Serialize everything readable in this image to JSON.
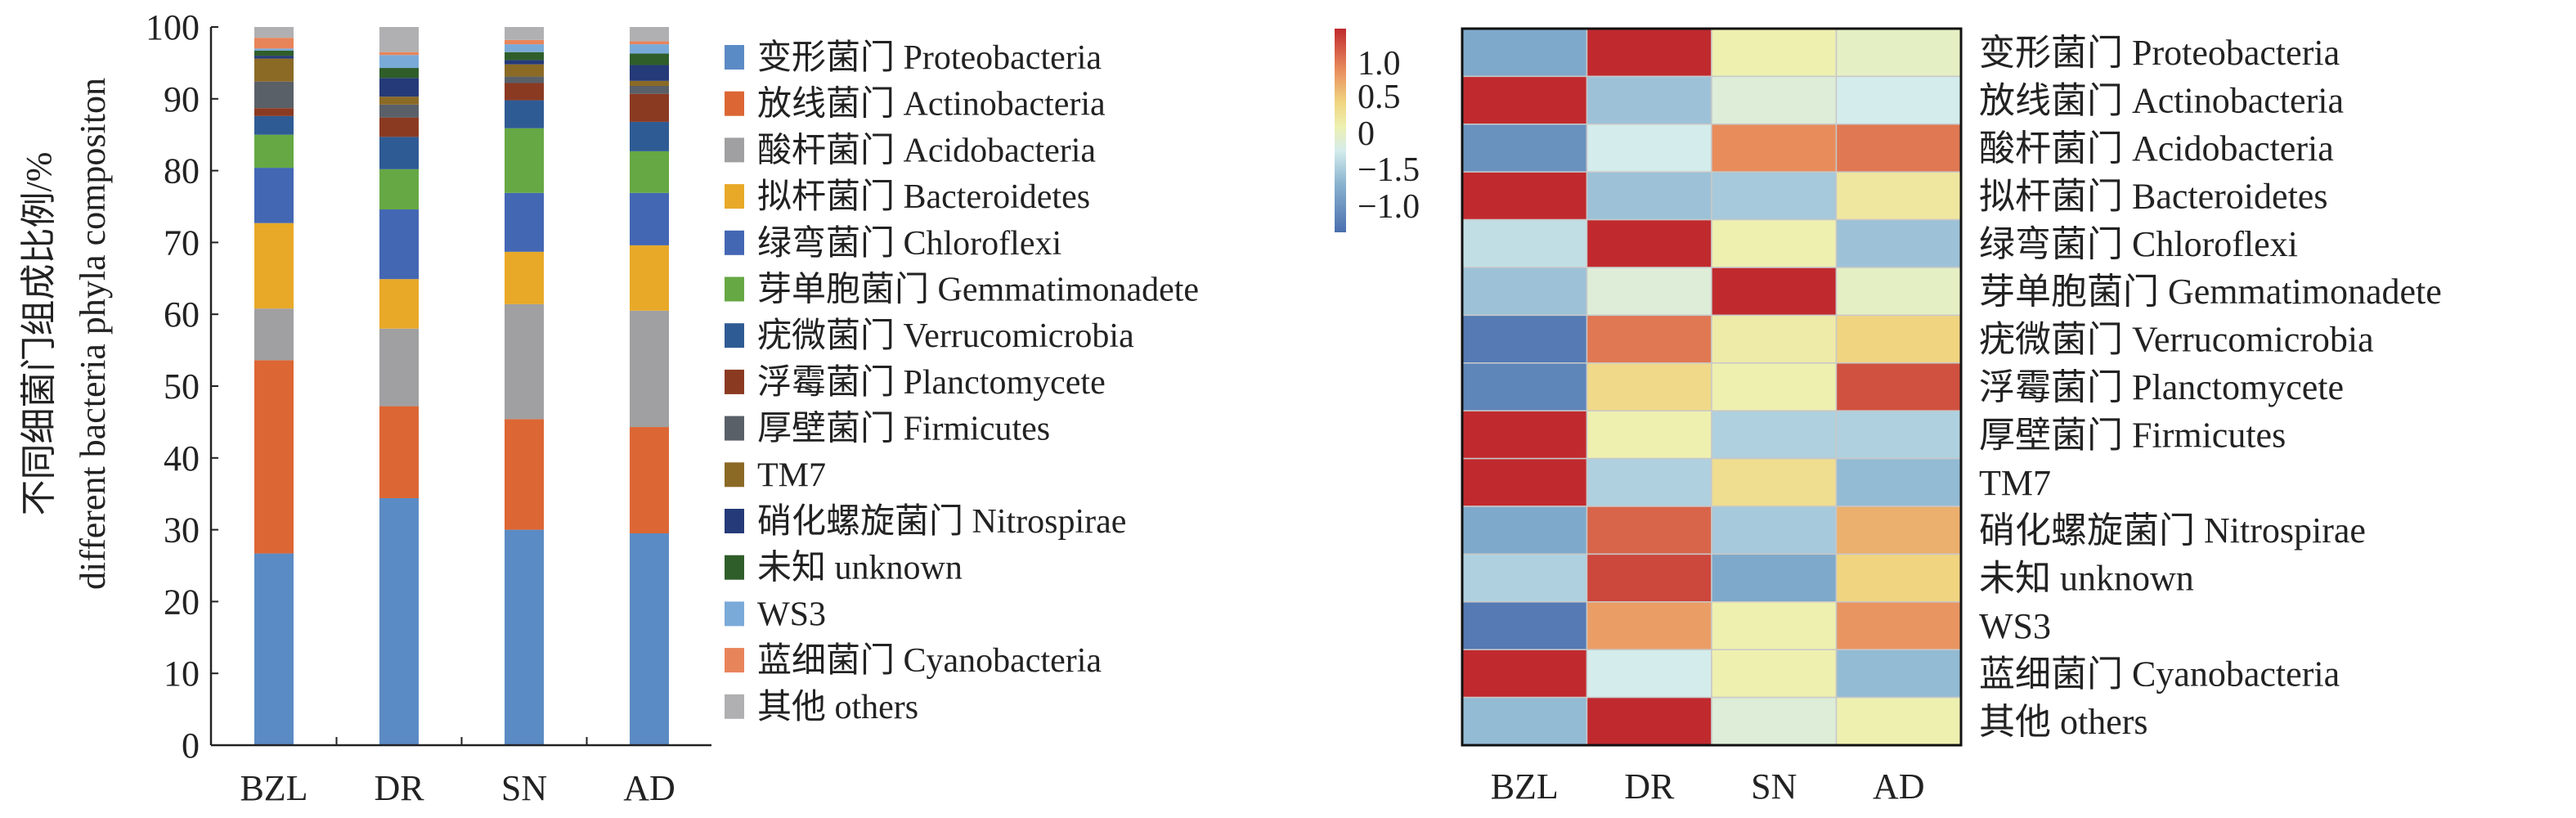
{
  "chart_data": [
    {
      "type": "bar",
      "stacked": true,
      "ylabel": [
        "不同细菌门组成比例/%",
        "different bacteria phyla compositon"
      ],
      "xlabel": "",
      "ylim": [
        0,
        100
      ],
      "yticks": [
        "0",
        "10",
        "20",
        "30",
        "40",
        "50",
        "60",
        "70",
        "80",
        "90",
        "100"
      ],
      "categories": [
        "BZL",
        "DR",
        "SN",
        "AD"
      ],
      "legend_position": "right",
      "series": [
        {
          "name": "变形菌门 Proteobacteria",
          "color": "#5b8bc4",
          "values": [
            26.7,
            34.4,
            30.0,
            29.5
          ]
        },
        {
          "name": "放线菌门 Actinobacteria",
          "color": "#dc6634",
          "values": [
            26.9,
            12.8,
            15.4,
            14.8
          ]
        },
        {
          "name": "酸杆菌门 Acidobacteria",
          "color": "#a0a0a2",
          "values": [
            7.2,
            10.8,
            16.0,
            16.2
          ]
        },
        {
          "name": "拟杆菌门 Bacteroidetes",
          "color": "#e8a928",
          "values": [
            11.9,
            6.9,
            7.3,
            9.1
          ]
        },
        {
          "name": "绿弯菌门 Chloroflexi",
          "color": "#4467b4",
          "values": [
            7.7,
            9.7,
            8.2,
            7.3
          ]
        },
        {
          "name": "芽单胞菌门 Gemmatimonadete",
          "color": "#66a844",
          "values": [
            4.6,
            5.6,
            9.0,
            5.8
          ]
        },
        {
          "name": "疣微菌门 Verrucomicrobia",
          "color": "#2f5b94",
          "values": [
            2.6,
            4.5,
            3.9,
            4.1
          ]
        },
        {
          "name": "浮霉菌门 Planctomycete",
          "color": "#8b3a22",
          "values": [
            1.1,
            2.7,
            2.4,
            3.9
          ]
        },
        {
          "name": "厚壁菌门 Firmicutes",
          "color": "#5a6068",
          "values": [
            3.7,
            1.8,
            0.9,
            1.1
          ]
        },
        {
          "name": "TM7",
          "color": "#8b6a26",
          "values": [
            3.2,
            1.1,
            1.7,
            0.7
          ]
        },
        {
          "name": "硝化螺旋菌门 Nitrospirae",
          "color": "#253a78",
          "values": [
            0.4,
            2.6,
            0.6,
            2.2
          ]
        },
        {
          "name": "未知 unknown",
          "color": "#2f5e2a",
          "values": [
            0.7,
            1.4,
            1.1,
            1.6
          ]
        },
        {
          "name": "WS3",
          "color": "#7aaad8",
          "values": [
            0.3,
            1.8,
            1.1,
            1.3
          ]
        },
        {
          "name": "蓝细菌门 Cyanobacteria",
          "color": "#e8845a",
          "values": [
            1.5,
            0.4,
            0.6,
            0.4
          ]
        },
        {
          "name": "其他 others",
          "color": "#b0b0b2",
          "values": [
            1.5,
            3.5,
            1.8,
            2.0
          ]
        }
      ]
    },
    {
      "type": "heatmap",
      "columns": [
        "BZL",
        "DR",
        "SN",
        "AD"
      ],
      "rows": [
        "变形菌门 Proteobacteria",
        "放线菌门 Actinobacteria",
        "酸杆菌门 Acidobacteria",
        "拟杆菌门 Bacteroidetes",
        "绿弯菌门 Chloroflexi",
        "芽单胞菌门 Gemmatimonadete",
        "疣微菌门 Verrucomicrobia",
        "浮霉菌门 Planctomycete",
        "厚壁菌门 Firmicutes",
        "TM7",
        "硝化螺旋菌门 Nitrospirae",
        "未知 unknown",
        "WS3",
        "蓝细菌门 Cyanobacteria",
        "其他 others"
      ],
      "values": [
        [
          -0.7,
          1.3,
          0.1,
          0.0
        ],
        [
          1.4,
          -0.5,
          -0.1,
          -0.2
        ],
        [
          -0.9,
          -0.2,
          0.8,
          0.9
        ],
        [
          1.3,
          -0.5,
          -0.45,
          0.2
        ],
        [
          -0.3,
          1.4,
          0.1,
          -0.5
        ],
        [
          -0.5,
          -0.1,
          1.4,
          0.0
        ],
        [
          -1.1,
          0.9,
          0.15,
          0.4
        ],
        [
          -1.0,
          0.35,
          0.1,
          1.1
        ],
        [
          1.4,
          0.1,
          -0.4,
          -0.4
        ],
        [
          1.3,
          -0.4,
          0.3,
          -0.55
        ],
        [
          -0.7,
          1.0,
          -0.45,
          0.6
        ],
        [
          -0.4,
          1.15,
          -0.7,
          0.4
        ],
        [
          -1.1,
          0.7,
          0.1,
          0.75
        ],
        [
          1.4,
          -0.2,
          0.1,
          -0.55
        ],
        [
          -0.55,
          1.4,
          -0.1,
          0.1
        ]
      ],
      "colorbar_labels": [
        "1.0",
        "0.5",
        "0",
        "−1.5",
        "−1.0"
      ],
      "colormap_stops": [
        {
          "v": -1.2,
          "c": "#4a6fae"
        },
        {
          "v": -0.6,
          "c": "#8ab4d0"
        },
        {
          "v": -0.2,
          "c": "#d4ecec"
        },
        {
          "v": 0.1,
          "c": "#eef0b0"
        },
        {
          "v": 0.4,
          "c": "#f0d480"
        },
        {
          "v": 0.8,
          "c": "#e88c5c"
        },
        {
          "v": 1.3,
          "c": "#c02a2e"
        }
      ]
    }
  ]
}
